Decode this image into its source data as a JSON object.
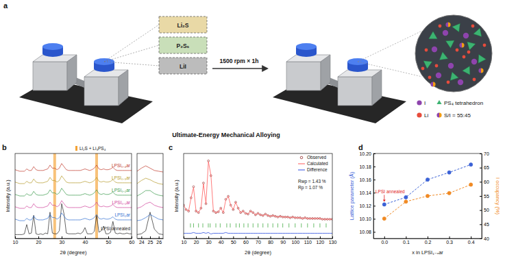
{
  "diagram": {
    "panel": "a",
    "reagents": [
      {
        "label": "Li₂S",
        "color": "#e9d9a6"
      },
      {
        "label": "P₂S₅",
        "color": "#c9dfb9"
      },
      {
        "label": "LiI",
        "color": "#bcbcbc"
      }
    ],
    "process": "1500 rpm × 1h",
    "caption": "Ultimate-Energy Mechanical Alloying",
    "legend": [
      {
        "label": "I",
        "color": "#8e44ad"
      },
      {
        "label": "PS₄ tetrahedron",
        "color": "#3cb371"
      },
      {
        "label": "Li",
        "color": "#e74c3c"
      },
      {
        "label": "S/I = 55:45",
        "colors": [
          "#f39c12",
          "#8e44ad"
        ]
      }
    ]
  },
  "chart_data": [
    {
      "panel": "b",
      "type": "line",
      "xlabel": "2θ (degree)",
      "ylabel": "Intensity (a.u.)",
      "x": [
        10,
        11,
        12,
        13,
        14,
        15,
        16,
        17,
        18,
        19,
        20,
        21,
        22,
        23,
        24,
        25,
        26,
        27,
        28,
        29,
        30,
        31,
        32,
        33,
        34,
        35,
        36,
        37,
        38,
        39,
        40,
        41,
        42,
        43,
        44,
        45,
        46,
        47,
        48,
        49,
        50,
        51,
        52,
        53,
        54,
        55,
        56,
        57,
        58,
        59,
        60
      ],
      "series": [
        {
          "name": "LPSI annealed",
          "color": "#222222",
          "values": [
            5,
            5,
            5,
            5,
            6,
            18,
            6,
            7,
            30,
            6,
            5,
            6,
            5,
            7,
            6,
            34,
            7,
            6,
            6,
            10,
            45,
            32,
            7,
            6,
            6,
            6,
            6,
            7,
            6,
            8,
            14,
            6,
            6,
            6,
            9,
            30,
            8,
            10,
            16,
            6,
            6,
            8,
            22,
            7,
            6,
            7,
            6,
            6,
            7,
            6,
            6
          ]
        },
        {
          "name": "LPSI₀ar",
          "color": "#2f6fd1",
          "values": [
            25,
            24,
            23,
            23,
            23,
            26,
            24,
            24,
            29,
            25,
            24,
            24,
            24,
            25,
            26,
            31,
            27,
            27,
            25,
            27,
            33,
            29,
            25,
            24,
            24,
            24,
            24,
            24,
            24,
            25,
            26,
            25,
            24,
            25,
            27,
            31,
            26,
            25,
            26,
            25,
            25,
            26,
            28,
            25,
            24,
            24,
            24,
            24,
            24,
            24,
            24
          ]
        },
        {
          "name": "LPSI₀.₁ar",
          "color": "#d0409a",
          "values": [
            41,
            40,
            39,
            39,
            39,
            42,
            40,
            40,
            45,
            41,
            40,
            40,
            40,
            41,
            42,
            47,
            43,
            43,
            41,
            43,
            49,
            45,
            41,
            40,
            40,
            40,
            40,
            40,
            40,
            41,
            42,
            41,
            40,
            41,
            43,
            47,
            42,
            41,
            42,
            41,
            41,
            42,
            44,
            41,
            40,
            40,
            40,
            40,
            40,
            40,
            40
          ]
        },
        {
          "name": "LPSI₀.₂ar",
          "color": "#3a9a4a",
          "values": [
            57,
            56,
            55,
            55,
            55,
            58,
            56,
            56,
            61,
            57,
            56,
            56,
            56,
            57,
            58,
            63,
            59,
            59,
            57,
            59,
            65,
            61,
            57,
            56,
            56,
            56,
            56,
            56,
            56,
            57,
            58,
            57,
            56,
            57,
            59,
            63,
            58,
            57,
            58,
            57,
            57,
            58,
            60,
            57,
            56,
            56,
            56,
            56,
            56,
            56,
            56
          ]
        },
        {
          "name": "LPSI₀.₃ar",
          "color": "#b59a2a",
          "values": [
            73,
            72,
            71,
            71,
            71,
            74,
            72,
            72,
            77,
            73,
            72,
            72,
            72,
            73,
            74,
            79,
            75,
            75,
            73,
            75,
            81,
            77,
            73,
            72,
            72,
            72,
            72,
            72,
            72,
            73,
            74,
            73,
            72,
            73,
            75,
            79,
            74,
            73,
            74,
            73,
            73,
            74,
            76,
            73,
            72,
            72,
            72,
            72,
            72,
            72,
            72
          ]
        },
        {
          "name": "LPSI₀.₄ar",
          "color": "#c0392b",
          "values": [
            89,
            88,
            87,
            87,
            87,
            90,
            88,
            88,
            93,
            89,
            88,
            88,
            88,
            89,
            90,
            95,
            91,
            91,
            89,
            91,
            97,
            93,
            89,
            88,
            88,
            88,
            88,
            88,
            88,
            89,
            90,
            89,
            88,
            89,
            91,
            95,
            90,
            89,
            90,
            89,
            89,
            90,
            92,
            89,
            88,
            88,
            88,
            88,
            88,
            88,
            88
          ]
        }
      ],
      "reference_bands": {
        "label": "Li₂S + Li₃PS₄",
        "x": [
          27,
          45
        ],
        "color": "#f4a233"
      },
      "xlim": [
        10,
        60
      ],
      "xticks": [
        10,
        20,
        30,
        40,
        50,
        60
      ],
      "ylim": [
        0,
        110
      ],
      "tick_labels": "x"
    },
    {
      "type": "line",
      "x": [
        23.5,
        24,
        24.5,
        25,
        25.5,
        26,
        26.5
      ],
      "series": [
        {
          "color": "#222222",
          "values": [
            5,
            6,
            10,
            34,
            12,
            6,
            5
          ]
        },
        {
          "color": "#2f6fd1",
          "values": [
            23,
            24,
            27,
            31,
            28,
            25,
            24
          ]
        },
        {
          "color": "#d0409a",
          "values": [
            39,
            41,
            45,
            47,
            43,
            41,
            40
          ]
        },
        {
          "color": "#3a9a4a",
          "values": [
            55,
            58,
            62,
            62,
            58,
            56,
            55
          ]
        },
        {
          "color": "#b59a2a",
          "values": [
            71,
            75,
            78,
            76,
            73,
            71,
            70
          ]
        },
        {
          "color": "#c0392b",
          "values": [
            87,
            91,
            94,
            91,
            88,
            87,
            86
          ]
        }
      ],
      "xlim": [
        23.5,
        26.5
      ],
      "xticks": [
        24,
        25,
        26
      ],
      "ylim": [
        0,
        110
      ],
      "tick_labels": "x"
    },
    {
      "panel": "c",
      "type": "line",
      "xlabel": "2θ (degree)",
      "ylabel": "Intensity (a.u.)",
      "x": [
        10,
        12,
        14,
        16,
        18,
        20,
        22,
        24,
        26,
        28,
        30,
        32,
        34,
        36,
        38,
        40,
        42,
        44,
        46,
        48,
        50,
        52,
        54,
        56,
        58,
        60,
        62,
        64,
        66,
        68,
        70,
        72,
        74,
        76,
        78,
        80,
        82,
        84,
        86,
        88,
        90,
        92,
        94,
        96,
        98,
        100,
        102,
        104,
        106,
        108,
        110,
        112,
        114,
        116,
        118,
        120,
        122,
        124,
        126,
        128,
        130
      ],
      "series": [
        {
          "name": "Observed",
          "color": "#8b1a1a",
          "marker": "circle-open",
          "line_style": "none",
          "values": [
            30,
            24,
            22,
            40,
            55,
            22,
            20,
            26,
            60,
            32,
            90,
            70,
            22,
            20,
            21,
            26,
            20,
            38,
            42,
            30,
            24,
            34,
            26,
            20,
            22,
            19,
            18,
            22,
            20,
            17,
            19,
            17,
            16,
            18,
            16,
            15,
            16,
            15,
            14,
            15,
            14,
            14,
            14,
            13,
            14,
            13,
            13,
            13,
            12,
            13,
            12,
            12,
            12,
            12,
            12,
            12,
            11,
            11,
            11,
            11,
            11
          ]
        },
        {
          "name": "Calculated",
          "color": "#ff5a5a",
          "line_style": "solid",
          "values": [
            30,
            24,
            22,
            40,
            54,
            22,
            20,
            26,
            59,
            32,
            89,
            71,
            22,
            20,
            21,
            26,
            20,
            37,
            42,
            30,
            24,
            34,
            26,
            20,
            22,
            19,
            18,
            22,
            20,
            17,
            19,
            17,
            16,
            18,
            16,
            15,
            16,
            15,
            14,
            15,
            14,
            14,
            14,
            13,
            14,
            13,
            13,
            13,
            12,
            13,
            12,
            12,
            12,
            12,
            12,
            12,
            11,
            11,
            11,
            11,
            11
          ]
        },
        {
          "name": "Difference",
          "color": "#3050e0",
          "line_style": "solid",
          "values": [
            -8,
            -8,
            -8,
            -8,
            -7,
            -8,
            -8,
            -8,
            -7,
            -8,
            -7,
            -9,
            -8,
            -8,
            -8,
            -8,
            -8,
            -7,
            -8,
            -8,
            -8,
            -8,
            -8,
            -8,
            -8,
            -8,
            -8,
            -8,
            -8,
            -8,
            -8,
            -8,
            -8,
            -8,
            -8,
            -8,
            -8,
            -8,
            -8,
            -8,
            -8,
            -8,
            -8,
            -8,
            -8,
            -8,
            -8,
            -8,
            -8,
            -8,
            -8,
            -8,
            -8,
            -8,
            -8,
            -8,
            -8,
            -8,
            -8,
            -8,
            -8
          ]
        }
      ],
      "reflections": {
        "x": [
          15.5,
          18,
          22,
          25.5,
          29.9,
          31.4,
          36,
          39.5,
          44.8,
          47.6,
          52.3,
          55,
          58.6,
          62,
          66,
          70,
          74,
          78,
          82,
          86,
          90,
          95,
          100,
          105,
          110,
          115,
          120,
          125
        ],
        "color": "#2ca02c"
      },
      "annotations": [
        "Rwp = 1.43 %",
        "Rp = 1.07 %"
      ],
      "legend": "upper right",
      "xlim": [
        10,
        130
      ],
      "xticks": [
        10,
        20,
        30,
        40,
        50,
        60,
        70,
        80,
        90,
        100,
        110,
        120,
        130
      ],
      "ylim": [
        -15,
        100
      ],
      "tick_labels": "x"
    },
    {
      "panel": "d",
      "type": "line",
      "xlabel": "x in LPSI₁₋ₓar",
      "ylabel": "Lattice parameter (Å)",
      "y2label": "I occupancy (%)",
      "x": [
        0,
        0.1,
        0.2,
        0.3,
        0.4
      ],
      "series": [
        {
          "color": "#3b62d6",
          "marker": "circle",
          "line_style": "dashed",
          "values": [
            10.122,
            10.133,
            10.16,
            10.171,
            10.183
          ]
        },
        {
          "color": "#f08a24",
          "marker": "circle",
          "line_style": "dashed",
          "axis": "y2",
          "values": [
            47,
            53,
            55,
            56,
            59
          ]
        }
      ],
      "annotations": [
        {
          "text": "LPSI annealed",
          "color": "#e02020"
        }
      ],
      "xlim": [
        -0.05,
        0.45
      ],
      "xticks": [
        {
          "value": 0,
          "label": "0.0"
        },
        0.1,
        0.2,
        0.3,
        0.4
      ],
      "ylim": [
        10.07,
        10.2
      ],
      "yticks": [
        10.08,
        {
          "value": 10.1,
          "label": "10.10"
        },
        10.12,
        10.14,
        10.16,
        10.18,
        {
          "value": 10.2,
          "label": "10.20"
        }
      ],
      "y2lim": [
        40,
        70
      ],
      "y2ticks": [
        40,
        45,
        50,
        55,
        60,
        65,
        70
      ]
    }
  ]
}
